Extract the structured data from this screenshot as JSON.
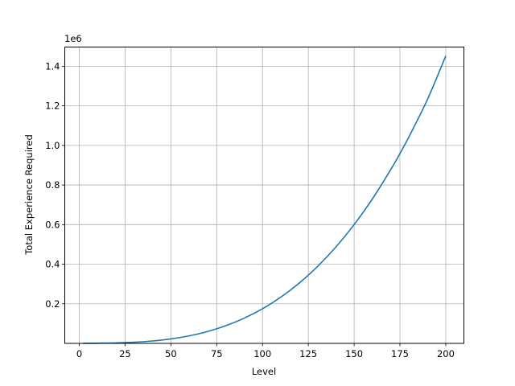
{
  "chart_data": {
    "type": "line",
    "title": "",
    "xlabel": "Level",
    "ylabel": "Total Experience Required",
    "y_offset_label": "1e6",
    "xlim": [
      -7.9,
      209.9
    ],
    "ylim": [
      0,
      1497000
    ],
    "xticks": [
      0,
      25,
      50,
      75,
      100,
      125,
      150,
      175,
      200
    ],
    "yticks": [
      0.2,
      0.4,
      0.6,
      0.8,
      1.0,
      1.2,
      1.4
    ],
    "ytick_labels": [
      "0.2",
      "0.4",
      "0.6",
      "0.8",
      "1.0",
      "1.2",
      "1.4"
    ],
    "ytick_scale": 1000000,
    "grid": true,
    "series": [
      {
        "color": "#1f77b4",
        "x": [
          2,
          10,
          20,
          30,
          40,
          50,
          60,
          70,
          80,
          90,
          100,
          110,
          120,
          130,
          140,
          150,
          160,
          170,
          175,
          180,
          190,
          200
        ],
        "y": [
          192,
          940,
          2520,
          5880,
          12160,
          22500,
          38040,
          59920,
          89280,
          127260,
          175000,
          233640,
          304320,
          388180,
          486360,
          600000,
          730240,
          878220,
          959000,
          1045080,
          1231960,
          1452000
        ]
      }
    ]
  }
}
